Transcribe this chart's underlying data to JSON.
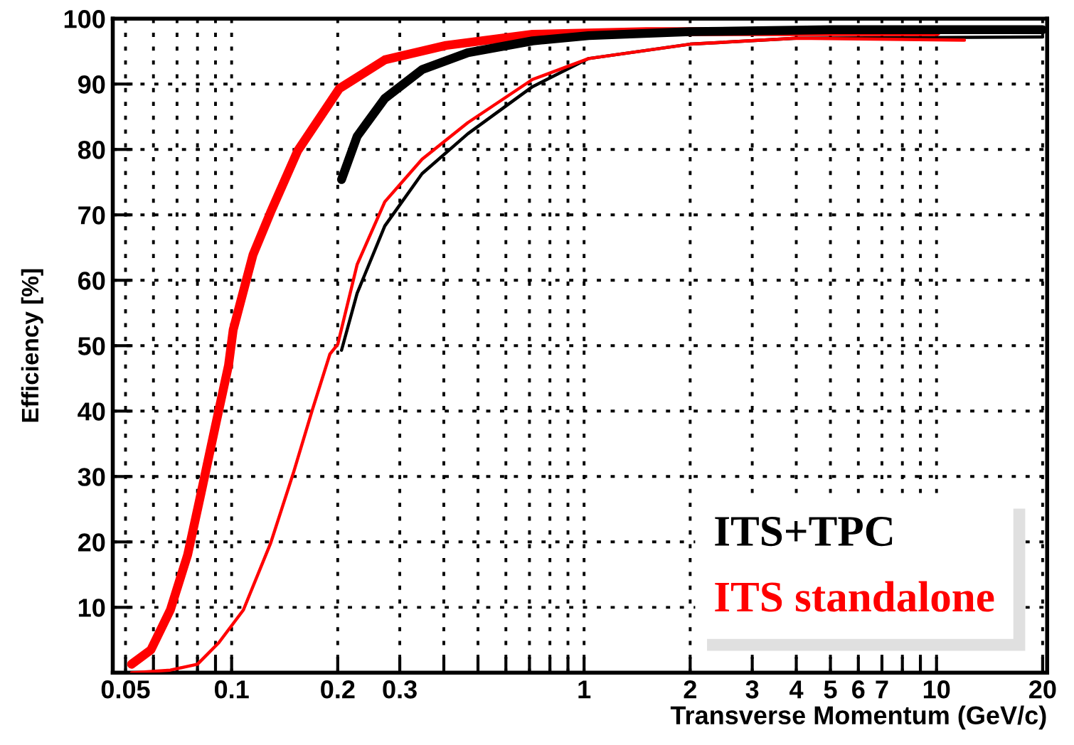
{
  "chart_data": {
    "type": "line",
    "xlabel": "Transverse Momentum (GeV/c)",
    "ylabel": "Efficiency [%]",
    "log": "x",
    "xlim": [
      0.046,
      20.6
    ],
    "ylim": [
      0,
      100
    ],
    "xticks": [
      0.05,
      {
        "value": 0.06,
        "label": null
      },
      {
        "value": 0.07,
        "label": null
      },
      {
        "value": 0.08,
        "label": null
      },
      {
        "value": 0.09,
        "label": null
      },
      0.1,
      0.2,
      0.3,
      {
        "value": 0.4,
        "label": null
      },
      {
        "value": 0.5,
        "label": null
      },
      {
        "value": 0.6,
        "label": null
      },
      {
        "value": 0.7,
        "label": null
      },
      {
        "value": 0.8,
        "label": null
      },
      {
        "value": 0.9,
        "label": null
      },
      1,
      2,
      3,
      4,
      5,
      6,
      7,
      {
        "value": 8,
        "label": null
      },
      {
        "value": 9,
        "label": null
      },
      10,
      20
    ],
    "yticks": [
      10,
      20,
      30,
      40,
      50,
      60,
      70,
      80,
      90,
      100
    ],
    "grid": true,
    "legend": "bottom right",
    "line_style": "solid",
    "series": [
      {
        "name": "ITS+TPC",
        "color": "#000000",
        "x": [
          0.205,
          0.227,
          0.272,
          0.347,
          0.468,
          0.714,
          1.03,
          2,
          5,
          20
        ],
        "values": [
          75.4,
          82,
          87.8,
          92.2,
          94.8,
          96.6,
          97.4,
          98,
          98.3,
          98.3
        ]
      },
      {
        "name": "ITS standalone",
        "color": "#ff0000",
        "x": [
          0.052,
          0.059,
          0.067,
          0.075,
          0.082,
          0.09,
          0.098,
          0.101,
          0.115,
          0.129,
          0.154,
          0.202,
          0.272,
          0.406,
          0.714,
          1.5,
          4,
          10
        ],
        "values": [
          1.3,
          3.5,
          9.6,
          18,
          27.6,
          37.8,
          47,
          52.4,
          63.9,
          70.4,
          79.8,
          89.3,
          93.7,
          95.9,
          97.6,
          98,
          98,
          98
        ]
      },
      {
        "color": "#ff0000",
        "x": [
          0.052,
          0.067,
          0.08,
          0.092,
          0.108,
          0.129,
          0.15,
          0.169,
          0.19,
          0.2,
          0.227,
          0.272,
          0.347,
          0.468,
          0.714,
          1.03,
          2,
          4,
          12
        ],
        "values": [
          0,
          0.4,
          1.3,
          4.6,
          9.6,
          19.8,
          30.7,
          40,
          48.7,
          50.2,
          62.4,
          72,
          78.5,
          84.1,
          90.7,
          93.9,
          96.1,
          97,
          96.7
        ]
      },
      {
        "color": "#000000",
        "x": [
          0.205,
          0.227,
          0.272,
          0.347,
          0.468,
          0.714,
          1.03,
          2,
          4,
          20
        ],
        "values": [
          49.3,
          58,
          68.3,
          76.3,
          82.4,
          89.6,
          93.9,
          96.1,
          97,
          97.2
        ]
      }
    ]
  }
}
